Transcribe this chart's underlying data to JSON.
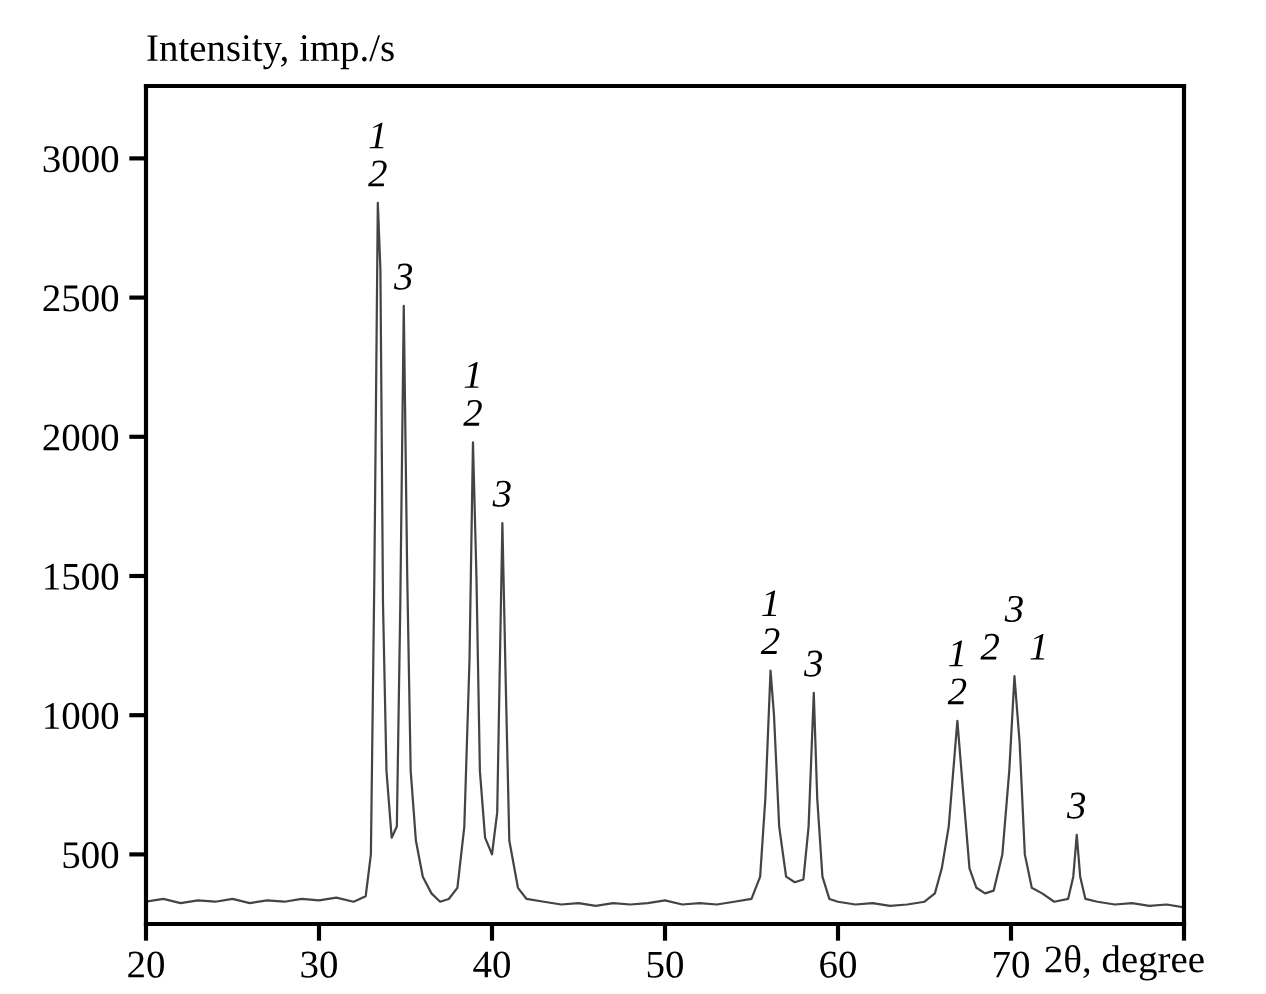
{
  "chart_data": {
    "type": "line",
    "ylabel": "Intensity, imp./s",
    "xlabel": "2θ, degree",
    "xlim": [
      20,
      80
    ],
    "ylim": [
      250,
      3260
    ],
    "xticks": [
      20,
      30,
      40,
      50,
      60,
      70,
      {
        "value": 80,
        "label": null
      }
    ],
    "yticks": [
      500,
      1000,
      1500,
      2000,
      2500,
      3000
    ],
    "grid": false,
    "legend": false,
    "marker": "none",
    "line_style": "solid",
    "series": [
      {
        "color": "#444444",
        "x": [
          20,
          21,
          22,
          23,
          24,
          25,
          26,
          27,
          28,
          29,
          30,
          31,
          32,
          32.7,
          33.0,
          33.2,
          33.4,
          33.55,
          33.7,
          33.9,
          34.2,
          34.5,
          34.7,
          34.9,
          35.1,
          35.3,
          35.6,
          36,
          36.5,
          37,
          37.5,
          38,
          38.4,
          38.7,
          38.9,
          39.1,
          39.3,
          39.6,
          40.0,
          40.3,
          40.6,
          40.8,
          41.0,
          41.5,
          42,
          43,
          44,
          45,
          46,
          47,
          48,
          49,
          50,
          51,
          52,
          53,
          54,
          55,
          55.5,
          55.8,
          56.1,
          56.3,
          56.6,
          57,
          57.5,
          58,
          58.3,
          58.6,
          58.8,
          59.1,
          59.5,
          60,
          61,
          62,
          63,
          64,
          65,
          65.6,
          66.0,
          66.4,
          66.9,
          67.2,
          67.6,
          68,
          68.5,
          69,
          69.5,
          69.9,
          70.2,
          70.5,
          70.8,
          71.2,
          71.8,
          72.5,
          73.3,
          73.6,
          73.8,
          74.0,
          74.3,
          75,
          76,
          77,
          78,
          79,
          80
        ],
        "values": [
          330,
          340,
          325,
          335,
          330,
          340,
          325,
          335,
          330,
          340,
          335,
          345,
          330,
          350,
          500,
          1500,
          2840,
          2600,
          1400,
          800,
          560,
          600,
          1400,
          2470,
          1500,
          800,
          550,
          420,
          360,
          330,
          340,
          380,
          600,
          1200,
          1980,
          1500,
          800,
          560,
          500,
          650,
          1690,
          1100,
          550,
          380,
          340,
          330,
          320,
          325,
          315,
          325,
          320,
          325,
          335,
          320,
          325,
          320,
          330,
          340,
          420,
          700,
          1160,
          1000,
          600,
          420,
          400,
          410,
          600,
          1080,
          700,
          420,
          340,
          330,
          320,
          325,
          315,
          320,
          330,
          360,
          450,
          600,
          980,
          750,
          450,
          380,
          360,
          370,
          500,
          800,
          1140,
          900,
          500,
          380,
          360,
          330,
          340,
          420,
          570,
          420,
          340,
          330,
          320,
          325,
          315,
          320,
          310
        ]
      }
    ],
    "annotations": [
      {
        "text": "1\n2",
        "x": 33.4,
        "y": 2840
      },
      {
        "text": "3",
        "x": 34.9,
        "y": 2470
      },
      {
        "text": "1\n2",
        "x": 38.9,
        "y": 1980
      },
      {
        "text": "3",
        "x": 40.6,
        "y": 1690
      },
      {
        "text": "1\n2",
        "x": 56.1,
        "y": 1160
      },
      {
        "text": "3",
        "x": 58.6,
        "y": 1080
      },
      {
        "text": "1\n2",
        "x": 66.9,
        "y": 980
      },
      {
        "text": "3\n2   1",
        "x": 70.2,
        "y": 1140
      },
      {
        "text": "3",
        "x": 73.8,
        "y": 570
      }
    ]
  }
}
